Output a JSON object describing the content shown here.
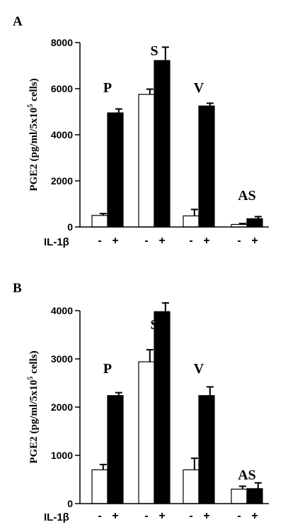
{
  "chart_data": [
    {
      "panel": "A",
      "type": "bar",
      "ylabel": "PGE2 (pg/ml/5x10",
      "ylabel_sup": "5",
      "ylabel_tail": " cells)",
      "ylim": [
        0,
        8000
      ],
      "yticks": [
        0,
        2000,
        4000,
        6000,
        8000
      ],
      "treatment_label": "IL-1β",
      "categories": [
        "P",
        "S",
        "V",
        "AS"
      ],
      "series": [
        {
          "treatment": "-",
          "color": "#ffffff",
          "values": [
            500,
            5750,
            480,
            110
          ],
          "errors": [
            80,
            230,
            280,
            40
          ]
        },
        {
          "treatment": "+",
          "color": "#000000",
          "values": [
            4950,
            7220,
            5250,
            360
          ],
          "errors": [
            170,
            580,
            120,
            90
          ]
        }
      ]
    },
    {
      "panel": "B",
      "type": "bar",
      "ylabel": "PGE2 (pg/ml/5x10",
      "ylabel_sup": "5",
      "ylabel_tail": " cells)",
      "ylim": [
        0,
        4000
      ],
      "yticks": [
        0,
        1000,
        2000,
        3000,
        4000
      ],
      "treatment_label": "IL-1β",
      "categories": [
        "P",
        "S",
        "V",
        "AS"
      ],
      "series": [
        {
          "treatment": "-",
          "color": "#ffffff",
          "values": [
            700,
            2940,
            700,
            300
          ],
          "errors": [
            110,
            250,
            240,
            60
          ]
        },
        {
          "treatment": "+",
          "color": "#000000",
          "values": [
            2240,
            3980,
            2240,
            310
          ],
          "errors": [
            60,
            180,
            180,
            120
          ]
        }
      ]
    }
  ]
}
